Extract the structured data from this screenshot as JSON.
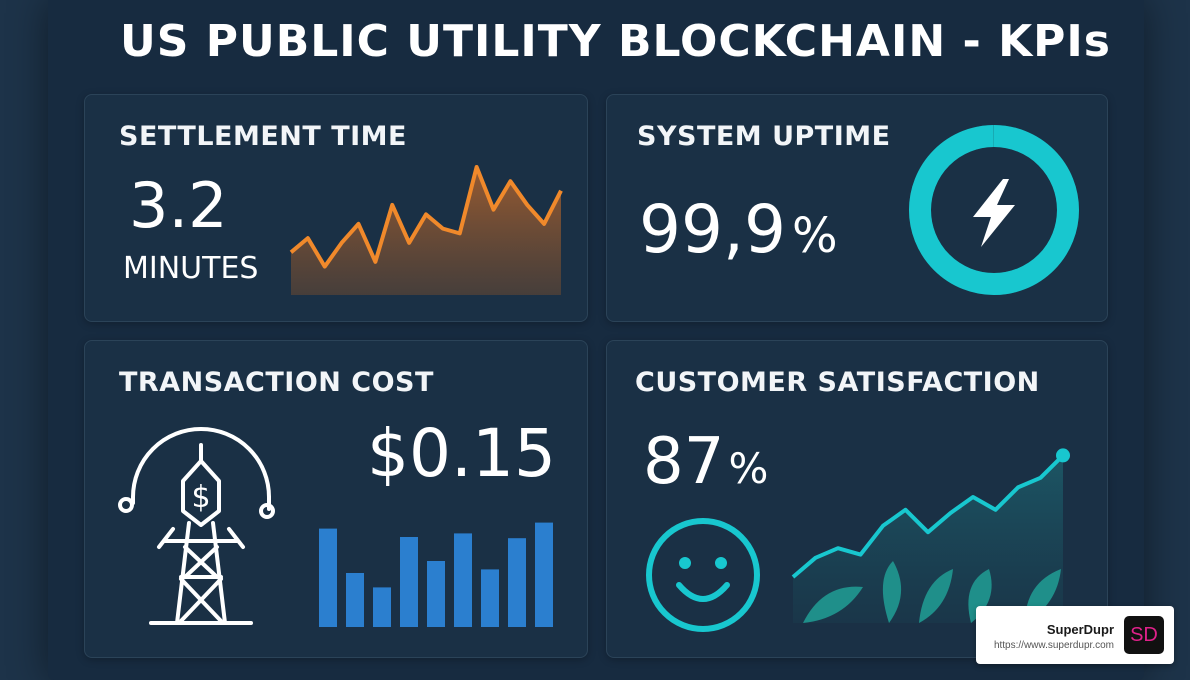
{
  "dashboard": {
    "title": "US PUBLIC UTILITY BLOCKCHAIN - KPIs"
  },
  "cards": {
    "settlement": {
      "title": "SETTLEMENT TIME",
      "value": "3.2",
      "unit": "MINUTES",
      "color": "#f0892b",
      "sparkline": [
        18,
        24,
        12,
        22,
        30,
        14,
        38,
        22,
        34,
        28,
        26,
        54,
        36,
        48,
        38,
        30,
        44
      ]
    },
    "uptime": {
      "title": "SYSTEM UPTIME",
      "value": "99,9",
      "unit": "%",
      "color": "#18c7cf",
      "ring_fraction": 0.999,
      "icon": "lightning-bolt-icon"
    },
    "cost": {
      "title": "TRANSACTION COST",
      "value": "$0.15",
      "color": "#2b7fcf",
      "icon": "power-tower-dollar-icon",
      "bars": [
        82,
        45,
        33,
        75,
        55,
        78,
        48,
        74,
        87
      ]
    },
    "satisfaction": {
      "title": "CUSTOMER SATISFACTION",
      "value": "87",
      "unit": "%",
      "color": "#18c7cf",
      "icon": "smiley-face-icon",
      "trend": [
        10,
        22,
        28,
        24,
        42,
        52,
        38,
        50,
        60,
        52,
        66,
        72,
        86
      ]
    }
  },
  "watermark": {
    "name": "SuperDupr",
    "url": "https://www.superdupr.com",
    "logo_text": "SD"
  }
}
